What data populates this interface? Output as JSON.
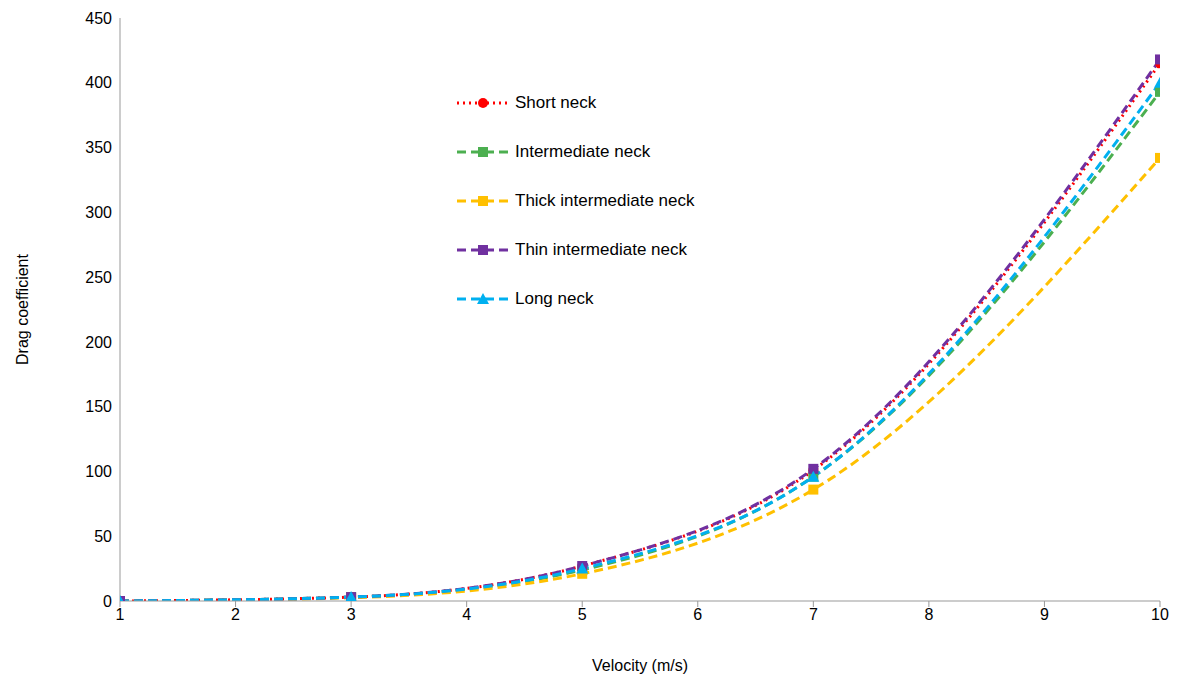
{
  "chart_data": {
    "type": "line",
    "x_label": "Velocity (m/s)",
    "y_label": "Drag coefficient",
    "x": [
      1,
      3,
      5,
      7,
      10
    ],
    "xlim": [
      1,
      10
    ],
    "xticks": [
      1,
      2,
      3,
      4,
      5,
      6,
      7,
      8,
      9,
      10
    ],
    "ylim": [
      0,
      450
    ],
    "yticks": [
      0,
      50,
      100,
      150,
      200,
      250,
      300,
      350,
      400,
      450
    ],
    "grid": false,
    "legend": "upper left",
    "series": [
      {
        "name": "Short neck",
        "color": "#ff0000",
        "marker": "circle",
        "line_style": "dotted",
        "values": [
          0,
          3,
          27,
          101,
          415
        ]
      },
      {
        "name": "Intermediate neck",
        "color": "#4caf50",
        "marker": "square",
        "line_style": "dashed",
        "values": [
          0,
          3,
          24,
          96,
          393
        ]
      },
      {
        "name": "Thick intermediate neck",
        "color": "#ffc000",
        "marker": "square",
        "line_style": "dashed",
        "values": [
          0,
          2.5,
          21,
          86,
          342
        ]
      },
      {
        "name": "Thin intermediate neck",
        "color": "#7030a0",
        "marker": "square",
        "line_style": "dashed",
        "values": [
          0,
          3,
          27,
          102,
          418
        ]
      },
      {
        "name": "Long neck",
        "color": "#00b0f0",
        "marker": "triangle",
        "line_style": "dashed",
        "values": [
          0,
          3,
          25,
          96,
          400
        ]
      }
    ]
  }
}
